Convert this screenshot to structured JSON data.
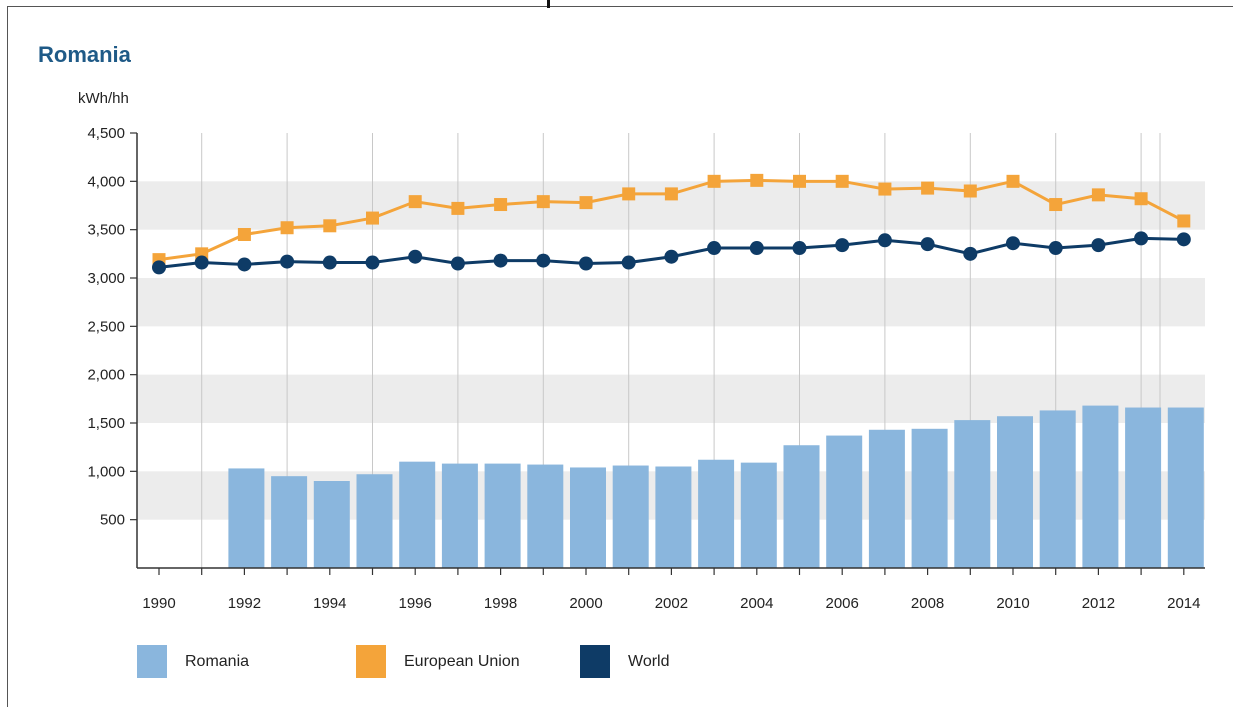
{
  "title": "Romania",
  "unit": "kWh/hh",
  "colors": {
    "romania": "#8ab6dd",
    "eu": "#f4a43a",
    "world": "#0e3b66",
    "band": "#ececec",
    "gridline": "#c8c8c8",
    "axis": "#333333",
    "title": "#1f5a87"
  },
  "legend": [
    {
      "label": "Romania",
      "color": "#8ab6dd"
    },
    {
      "label": "European Union",
      "color": "#f4a43a"
    },
    {
      "label": "World",
      "color": "#0e3b66"
    }
  ],
  "chart_data": {
    "type": "bar",
    "title": "Romania",
    "ylabel": "kWh/hh",
    "ylim": [
      0,
      4500
    ],
    "yticks": [
      500,
      1000,
      1500,
      2000,
      2500,
      3000,
      3500,
      4000,
      4500
    ],
    "ytick_labels": [
      "500",
      "1,000",
      "1,500",
      "2,000",
      "2,500",
      "3,000",
      "3,500",
      "4,000",
      "4,500"
    ],
    "x": [
      1990,
      1991,
      1992,
      1993,
      1994,
      1995,
      1996,
      1997,
      1998,
      1999,
      2000,
      2001,
      2002,
      2003,
      2004,
      2005,
      2006,
      2007,
      2008,
      2009,
      2010,
      2011,
      2012,
      2013,
      2014
    ],
    "xtick_labels": [
      "1990",
      "1992",
      "1994",
      "1996",
      "1998",
      "2000",
      "2002",
      "2004",
      "2006",
      "2008",
      "2010",
      "2012",
      "2014"
    ],
    "grid": "alternating horizontal bands; vertical gridlines",
    "legend_position": "bottom",
    "series": [
      {
        "name": "Romania",
        "type": "bar",
        "values": [
          null,
          null,
          1030,
          950,
          900,
          970,
          1100,
          1080,
          1080,
          1070,
          1040,
          1060,
          1050,
          1120,
          1090,
          1270,
          1370,
          1430,
          1440,
          1530,
          1570,
          1630,
          1680,
          1660,
          1660
        ]
      },
      {
        "name": "European Union",
        "type": "line",
        "marker": "square",
        "values": [
          3190,
          3250,
          3450,
          3520,
          3540,
          3620,
          3790,
          3720,
          3760,
          3790,
          3780,
          3870,
          3870,
          4000,
          4010,
          4000,
          4000,
          3920,
          3930,
          3900,
          4000,
          3760,
          3860,
          3820,
          3590
        ]
      },
      {
        "name": "World",
        "type": "line",
        "marker": "circle",
        "values": [
          3110,
          3160,
          3140,
          3170,
          3160,
          3160,
          3220,
          3150,
          3180,
          3180,
          3150,
          3160,
          3220,
          3310,
          3310,
          3310,
          3340,
          3390,
          3350,
          3250,
          3360,
          3310,
          3340,
          3410,
          3400
        ]
      }
    ]
  }
}
